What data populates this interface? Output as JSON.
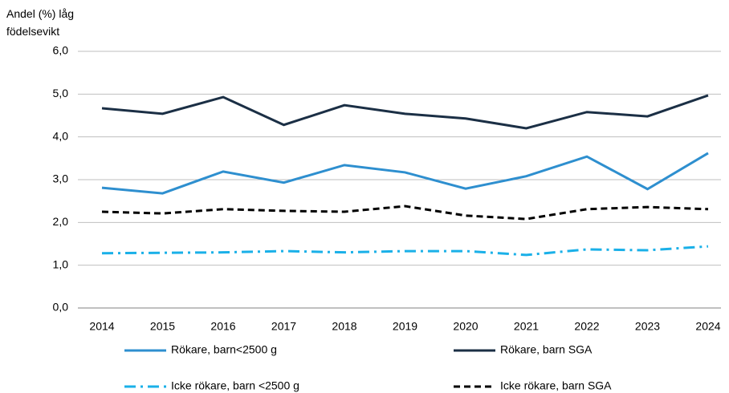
{
  "chart_data": {
    "type": "line",
    "y_label": "Andel (%) låg födelsevikt",
    "categories": [
      "2014",
      "2015",
      "2016",
      "2017",
      "2018",
      "2019",
      "2020",
      "2021",
      "2022",
      "2023",
      "2024"
    ],
    "ylim": [
      0,
      6
    ],
    "yticks": [
      {
        "value": 0,
        "label": "0,0"
      },
      {
        "value": 1,
        "label": "1,0"
      },
      {
        "value": 2,
        "label": "2,0"
      },
      {
        "value": 3,
        "label": "3,0"
      },
      {
        "value": 4,
        "label": "4,0"
      },
      {
        "value": 5,
        "label": "5,0"
      },
      {
        "value": 6,
        "label": "6,0"
      }
    ],
    "grid": true,
    "series": [
      {
        "name": "Rökare, barn<2500 g",
        "color": "#2e8fcf",
        "dash": "solid",
        "values": [
          2.81,
          2.68,
          3.19,
          2.93,
          3.34,
          3.17,
          2.79,
          3.08,
          3.54,
          2.78,
          3.62
        ]
      },
      {
        "name": "Rökare, barn SGA",
        "color": "#1b2f45",
        "dash": "solid",
        "values": [
          4.67,
          4.54,
          4.93,
          4.28,
          4.74,
          4.54,
          4.43,
          4.2,
          4.58,
          4.48,
          4.97
        ]
      },
      {
        "name": "Icke rökare, barn <2500 g",
        "color": "#1ab0e8",
        "dash": "dashdot",
        "values": [
          1.28,
          1.29,
          1.3,
          1.33,
          1.3,
          1.33,
          1.33,
          1.24,
          1.37,
          1.35,
          1.44
        ]
      },
      {
        "name": "Icke rökare, barn SGA",
        "color": "#000000",
        "dash": "dash",
        "values": [
          2.25,
          2.21,
          2.31,
          2.27,
          2.25,
          2.38,
          2.16,
          2.08,
          2.31,
          2.36,
          2.31
        ]
      }
    ]
  }
}
